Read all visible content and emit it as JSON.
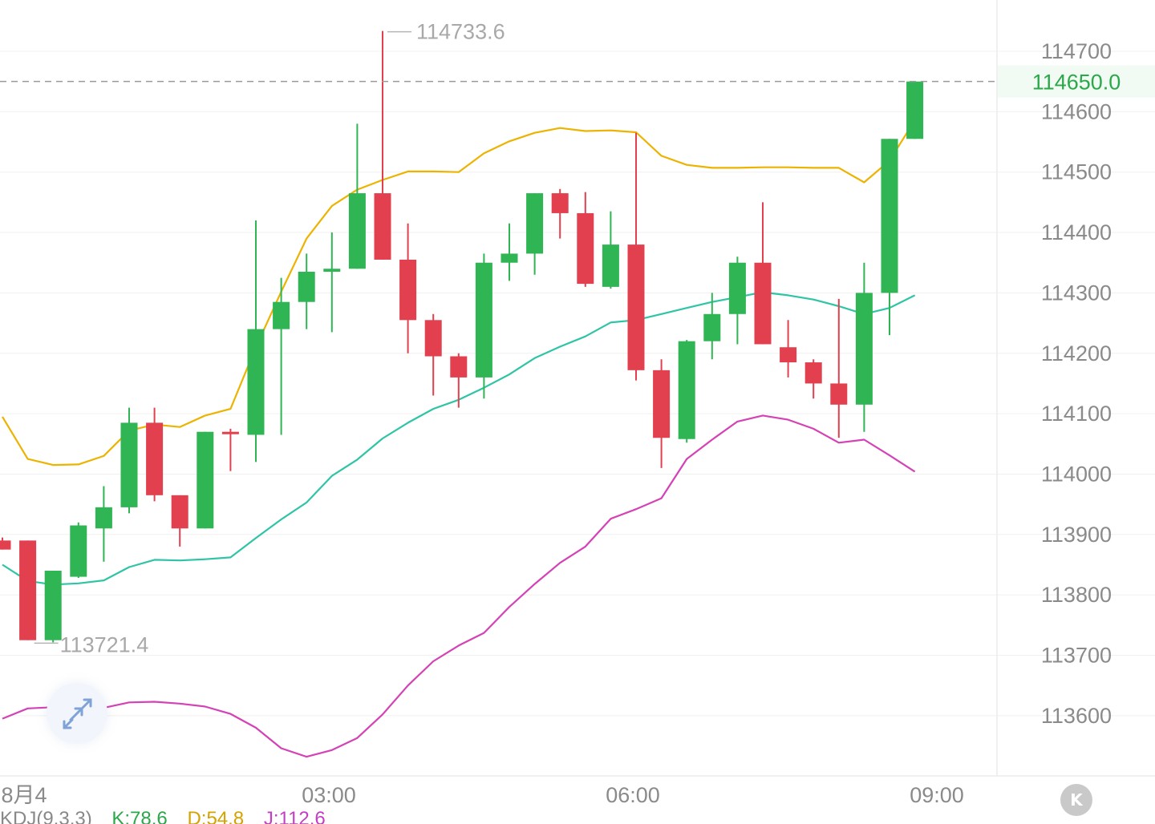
{
  "chart_data": {
    "type": "candlestick",
    "y_axis": {
      "ticks": [
        114700,
        114600,
        114500,
        114400,
        114300,
        114200,
        114100,
        114000,
        113900,
        113800,
        113700,
        113600
      ],
      "position": "right"
    },
    "x_axis": {
      "tick_labels": [
        "8月4",
        "03:00",
        "06:00",
        "09:00"
      ]
    },
    "current_price": {
      "value": 114650.0,
      "label": "114650.0",
      "color": "#2ba84a"
    },
    "high_marker": {
      "value": 114733.6,
      "label": "114733.6"
    },
    "low_marker": {
      "value": 113721.4,
      "label": "113721.4"
    },
    "candles": [
      {
        "o": 113890,
        "h": 113895,
        "l": 113875,
        "c": 113875
      },
      {
        "o": 113890,
        "h": 113890,
        "l": 113725,
        "c": 113725
      },
      {
        "o": 113725,
        "h": 113840,
        "l": 113721.4,
        "c": 113840
      },
      {
        "o": 113830,
        "h": 113920,
        "l": 113828,
        "c": 113915
      },
      {
        "o": 113910,
        "h": 113980,
        "l": 113855,
        "c": 113945
      },
      {
        "o": 113945,
        "h": 114110,
        "l": 113935,
        "c": 114085
      },
      {
        "o": 114085,
        "h": 114110,
        "l": 113955,
        "c": 113965
      },
      {
        "o": 113965,
        "h": 113965,
        "l": 113880,
        "c": 113910
      },
      {
        "o": 113910,
        "h": 114070,
        "l": 113910,
        "c": 114070
      },
      {
        "o": 114070,
        "h": 114075,
        "l": 114005,
        "c": 114068
      },
      {
        "o": 114065,
        "h": 114420,
        "l": 114020,
        "c": 114240
      },
      {
        "o": 114240,
        "h": 114325,
        "l": 114065,
        "c": 114285
      },
      {
        "o": 114285,
        "h": 114365,
        "l": 114240,
        "c": 114335
      },
      {
        "o": 114335,
        "h": 114400,
        "l": 114235,
        "c": 114340
      },
      {
        "o": 114340,
        "h": 114580,
        "l": 114340,
        "c": 114465
      },
      {
        "o": 114465,
        "h": 114733.6,
        "l": 114355,
        "c": 114355
      },
      {
        "o": 114355,
        "h": 114415,
        "l": 114200,
        "c": 114255
      },
      {
        "o": 114255,
        "h": 114265,
        "l": 114130,
        "c": 114195
      },
      {
        "o": 114195,
        "h": 114200,
        "l": 114110,
        "c": 114160
      },
      {
        "o": 114160,
        "h": 114365,
        "l": 114125,
        "c": 114350
      },
      {
        "o": 114350,
        "h": 114415,
        "l": 114320,
        "c": 114365
      },
      {
        "o": 114365,
        "h": 114465,
        "l": 114330,
        "c": 114465
      },
      {
        "o": 114465,
        "h": 114472,
        "l": 114390,
        "c": 114432
      },
      {
        "o": 114432,
        "h": 114467,
        "l": 114310,
        "c": 114315
      },
      {
        "o": 114310,
        "h": 114435,
        "l": 114307,
        "c": 114380
      },
      {
        "o": 114380,
        "h": 114565,
        "l": 114155,
        "c": 114172
      },
      {
        "o": 114172,
        "h": 114190,
        "l": 114010,
        "c": 114060
      },
      {
        "o": 114058,
        "h": 114222,
        "l": 114052,
        "c": 114220
      },
      {
        "o": 114220,
        "h": 114300,
        "l": 114190,
        "c": 114265
      },
      {
        "o": 114265,
        "h": 114360,
        "l": 114215,
        "c": 114350
      },
      {
        "o": 114350,
        "h": 114450,
        "l": 114215,
        "c": 114215
      },
      {
        "o": 114210,
        "h": 114255,
        "l": 114160,
        "c": 114185
      },
      {
        "o": 114185,
        "h": 114190,
        "l": 114125,
        "c": 114150
      },
      {
        "o": 114150,
        "h": 114290,
        "l": 114060,
        "c": 114115
      },
      {
        "o": 114115,
        "h": 114350,
        "l": 114070,
        "c": 114300
      },
      {
        "o": 114300,
        "h": 114555,
        "l": 114230,
        "c": 114555
      },
      {
        "o": 114555,
        "h": 114650,
        "l": 114555,
        "c": 114650
      }
    ],
    "bands": {
      "upper": [
        114095,
        114025,
        114015,
        114016,
        114030,
        114072,
        114082,
        114078,
        114097,
        114108,
        114210,
        114302,
        114390,
        114444,
        114471,
        114487,
        114501,
        114501,
        114500,
        114531,
        114551,
        114565,
        114573,
        114568,
        114569,
        114566,
        114527,
        114512,
        114507,
        114507,
        114508,
        114508,
        114507,
        114507,
        114483,
        114519,
        114586
      ],
      "middle": [
        113850,
        113823,
        113817,
        113819,
        113824,
        113846,
        113858,
        113857,
        113859,
        113862,
        113894,
        113925,
        113953,
        113997,
        114024,
        114059,
        114085,
        114108,
        114123,
        114143,
        114165,
        114192,
        114211,
        114228,
        114251,
        114255,
        114265,
        114275,
        114285,
        114293,
        114301,
        114296,
        114289,
        114278,
        114265,
        114275,
        114296
      ],
      "lower": [
        113595,
        113612,
        113614,
        113613,
        113613,
        113622,
        113623,
        113620,
        113615,
        113603,
        113580,
        113546,
        113532,
        113543,
        113563,
        113602,
        113650,
        113690,
        113716,
        113737,
        113780,
        113818,
        113853,
        113880,
        113926,
        113942,
        113960,
        114025,
        114057,
        114087,
        114097,
        114090,
        114075,
        114052,
        114057,
        114031,
        114004
      ]
    },
    "colors": {
      "up": "#2fb553",
      "down": "#e2404f",
      "upper_band": "#ecb300",
      "middle_band": "#2fc4a6",
      "lower_band": "#d442b5",
      "grid": "#f0f0f0"
    },
    "legend": "none",
    "grid": true
  },
  "indicator_line": {
    "name": "KDJ(9,3,3)",
    "k": "K:78.6",
    "d": "D:54.8",
    "j": "J:112.6"
  },
  "controls": {
    "expand_icon": "expand-arrows-icon",
    "k_button_label": "K"
  }
}
